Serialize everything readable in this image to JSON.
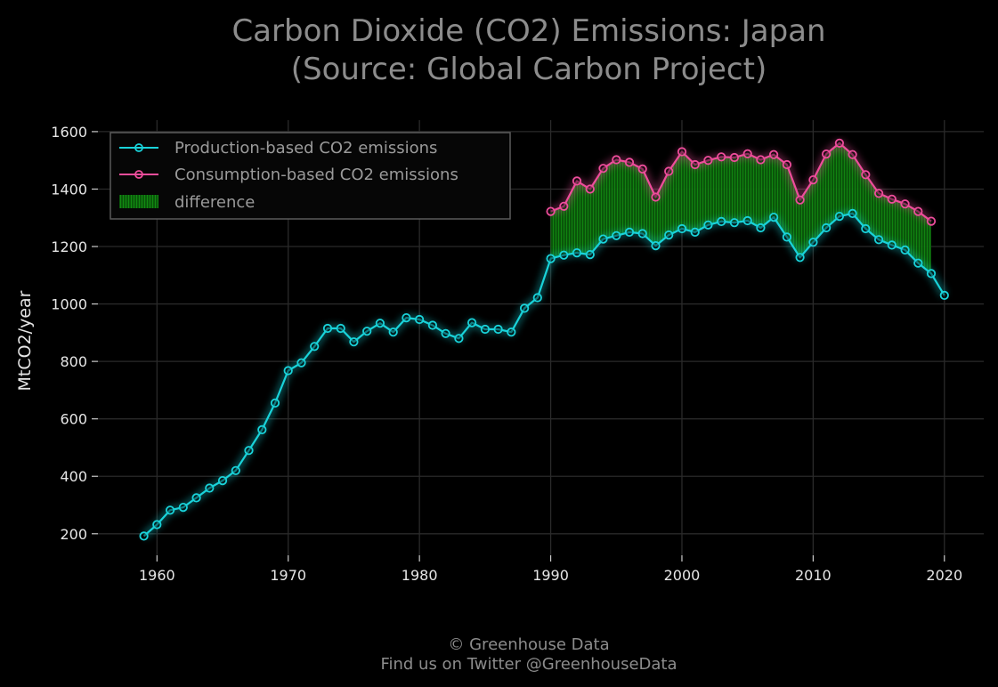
{
  "chart_data": {
    "type": "line",
    "title_line1": "Carbon Dioxide (CO2) Emissions: Japan",
    "title_line2": "(Source: Global Carbon Project)",
    "ylabel": "MtCO2/year",
    "xlabel": "",
    "xlim": [
      1955.5,
      2023
    ],
    "ylim": [
      125,
      1640
    ],
    "x_ticks": [
      1960,
      1970,
      1980,
      1990,
      2000,
      2010,
      2020
    ],
    "y_ticks": [
      200,
      400,
      600,
      800,
      1000,
      1200,
      1400,
      1600
    ],
    "grid": true,
    "legend_position": "top-left",
    "series": [
      {
        "name": "Production-based CO2 emissions",
        "color": "#19d3da",
        "x": [
          1959,
          1960,
          1961,
          1962,
          1963,
          1964,
          1965,
          1966,
          1967,
          1968,
          1969,
          1970,
          1971,
          1972,
          1973,
          1974,
          1975,
          1976,
          1977,
          1978,
          1979,
          1980,
          1981,
          1982,
          1983,
          1984,
          1985,
          1986,
          1987,
          1988,
          1989,
          1990,
          1991,
          1992,
          1993,
          1994,
          1995,
          1996,
          1997,
          1998,
          1999,
          2000,
          2001,
          2002,
          2003,
          2004,
          2005,
          2006,
          2007,
          2008,
          2009,
          2010,
          2011,
          2012,
          2013,
          2014,
          2015,
          2016,
          2017,
          2018,
          2019,
          2020
        ],
        "values": [
          192,
          232,
          282,
          292,
          325,
          359,
          385,
          420,
          490,
          562,
          655,
          768,
          795,
          852,
          915,
          915,
          868,
          905,
          933,
          902,
          952,
          946,
          926,
          897,
          880,
          935,
          912,
          912,
          902,
          985,
          1022,
          1158,
          1170,
          1178,
          1172,
          1226,
          1238,
          1250,
          1245,
          1203,
          1240,
          1262,
          1250,
          1275,
          1287,
          1283,
          1290,
          1265,
          1302,
          1233,
          1162,
          1215,
          1265,
          1305,
          1315,
          1262,
          1224,
          1205,
          1188,
          1142,
          1106,
          1030
        ]
      },
      {
        "name": "Consumption-based CO2 emissions",
        "color": "#ee4d9b",
        "x": [
          1990,
          1991,
          1992,
          1993,
          1994,
          1995,
          1996,
          1997,
          1998,
          1999,
          2000,
          2001,
          2002,
          2003,
          2004,
          2005,
          2006,
          2007,
          2008,
          2009,
          2010,
          2011,
          2012,
          2013,
          2014,
          2015,
          2016,
          2017,
          2018,
          2019
        ],
        "values": [
          1322,
          1340,
          1428,
          1400,
          1472,
          1502,
          1493,
          1470,
          1372,
          1462,
          1530,
          1485,
          1500,
          1512,
          1510,
          1523,
          1502,
          1520,
          1485,
          1362,
          1432,
          1522,
          1560,
          1520,
          1450,
          1385,
          1365,
          1348,
          1322,
          1288
        ]
      }
    ],
    "fill_between": {
      "name": "difference",
      "color": "#0f6e0f",
      "from_series": "Production-based CO2 emissions",
      "to_series": "Consumption-based CO2 emissions",
      "x_range": [
        1990,
        2019
      ]
    }
  },
  "footer": {
    "line1": "© Greenhouse Data",
    "line2": "Find us on Twitter @GreenhouseData"
  }
}
